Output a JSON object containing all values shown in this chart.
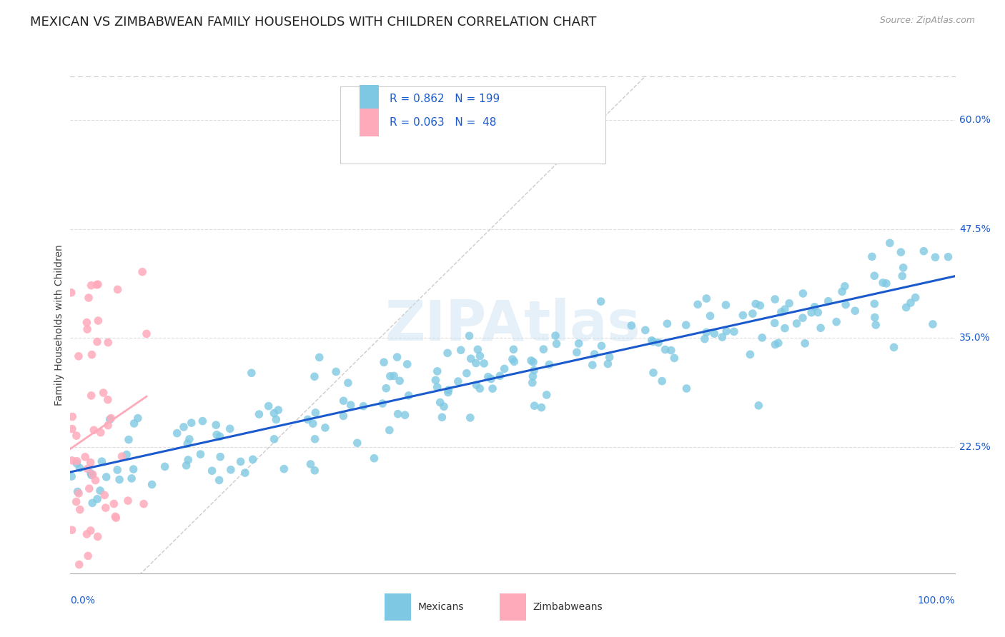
{
  "title": "MEXICAN VS ZIMBABWEAN FAMILY HOUSEHOLDS WITH CHILDREN CORRELATION CHART",
  "source": "Source: ZipAtlas.com",
  "ylabel": "Family Households with Children",
  "y_ticks": [
    0.225,
    0.35,
    0.475,
    0.6
  ],
  "y_tick_labels": [
    "22.5%",
    "35.0%",
    "47.5%",
    "60.0%"
  ],
  "xlim": [
    0.0,
    1.0
  ],
  "ylim": [
    0.08,
    0.65
  ],
  "mexicans_R": 0.862,
  "mexicans_N": 199,
  "zimbabweans_R": 0.063,
  "zimbabweans_N": 48,
  "mexican_color": "#7ec8e3",
  "zimbabwean_color": "#ffaabb",
  "trend_mexican_color": "#1a5acd",
  "diagonal_color": "#cccccc",
  "watermark": "ZIPAtlas",
  "background_color": "#ffffff",
  "grid_color": "#dddddd",
  "title_fontsize": 13,
  "axis_label_fontsize": 10,
  "tick_label_fontsize": 10,
  "legend_r1": "R = 0.862",
  "legend_n1": "N = 199",
  "legend_r2": "R = 0.063",
  "legend_n2": "N =  48"
}
